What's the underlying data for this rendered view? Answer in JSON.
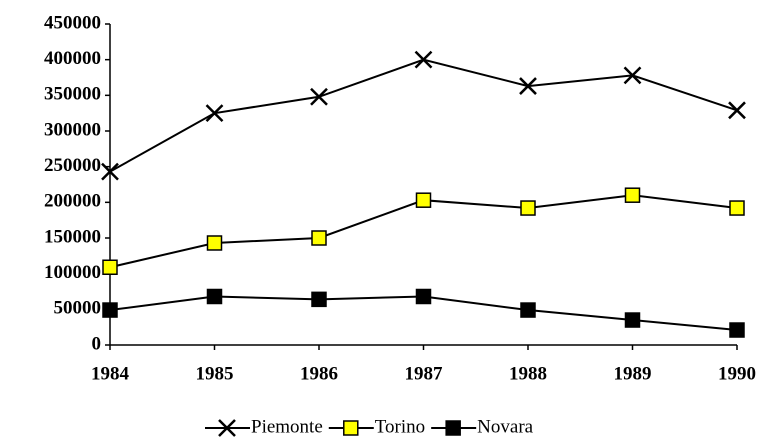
{
  "chart_data": {
    "type": "line",
    "x": [
      1984,
      1985,
      1986,
      1987,
      1988,
      1989,
      1990
    ],
    "xlim": [
      1984,
      1990
    ],
    "xticks": [
      1984,
      1985,
      1986,
      1987,
      1988,
      1989,
      1990
    ],
    "ylim": [
      0,
      450000
    ],
    "yticks": [
      0,
      50000,
      100000,
      150000,
      200000,
      250000,
      300000,
      350000,
      400000,
      450000
    ],
    "legend": "bottom",
    "series": [
      {
        "name": "Piemonte",
        "color": "#000000",
        "marker": "x",
        "values": [
          243000,
          325000,
          348000,
          400000,
          363000,
          378000,
          329000
        ]
      },
      {
        "name": "Torino",
        "color": "#ffff00",
        "marker": "square",
        "values": [
          109000,
          143000,
          150000,
          203000,
          192000,
          210000,
          192000
        ]
      },
      {
        "name": "Novara",
        "color": "#000000",
        "marker": "square",
        "values": [
          49000,
          68000,
          64000,
          68000,
          49000,
          35000,
          21000
        ]
      }
    ]
  }
}
